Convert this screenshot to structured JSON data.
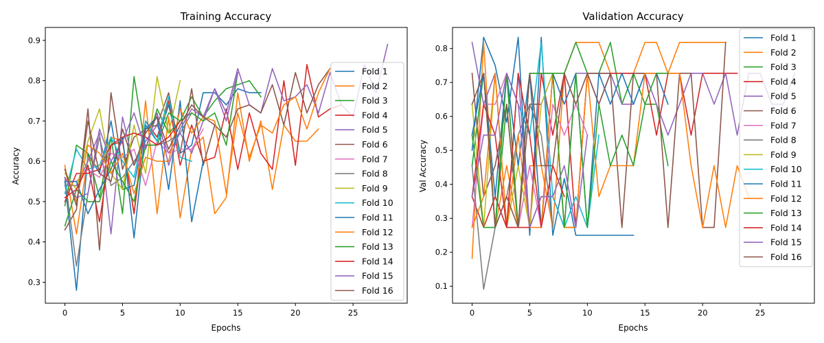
{
  "chart_data": [
    {
      "type": "line",
      "title": "Training Accuracy",
      "xlabel": "Epochs",
      "ylabel": "Accuracy",
      "xlim": [
        -1.7,
        29.7
      ],
      "ylim": [
        0.248,
        0.932
      ],
      "xticks": [
        0,
        5,
        10,
        15,
        20,
        25
      ],
      "yticks": [
        0.3,
        0.4,
        0.5,
        0.6,
        0.7,
        0.8,
        0.9
      ],
      "grid": false,
      "legend_position": "right",
      "series": [
        {
          "name": "Fold 1",
          "color": "#1f77b4",
          "values": [
            0.55,
            0.28,
            0.62,
            0.57,
            0.7,
            0.53,
            0.54,
            0.69,
            0.65,
            0.74,
            0.62,
            0.64,
            0.77,
            0.77,
            0.74,
            0.78,
            0.77,
            0.77
          ]
        },
        {
          "name": "Fold 2",
          "color": "#ff7f0e",
          "values": [
            0.59,
            0.42,
            0.61,
            0.58,
            0.66,
            0.65,
            0.47,
            0.75,
            0.47,
            0.71,
            0.46,
            0.63,
            0.66,
            0.47,
            0.51,
            0.77,
            0.6,
            0.7,
            0.53,
            0.69,
            0.65,
            0.65,
            0.68
          ]
        },
        {
          "name": "Fold 3",
          "color": "#2ca02c",
          "values": [
            0.49,
            0.64,
            0.62,
            0.51,
            0.66,
            0.47,
            0.81,
            0.63,
            0.73,
            0.67,
            0.7,
            0.76,
            0.71,
            0.75,
            0.78,
            0.79,
            0.8,
            0.76
          ]
        },
        {
          "name": "Fold 4",
          "color": "#d62728",
          "values": [
            0.5,
            0.57,
            0.57,
            0.58,
            0.64,
            0.65,
            0.47,
            0.7,
            0.66,
            0.75,
            0.59,
            0.69,
            0.6,
            0.61,
            0.73,
            0.58,
            0.72,
            0.62,
            0.58,
            0.8,
            0.59,
            0.84,
            0.71,
            0.73,
            0.74
          ]
        },
        {
          "name": "Fold 5",
          "color": "#9467bd",
          "values": [
            0.54,
            0.54,
            0.6,
            0.67,
            0.42,
            0.71,
            0.59,
            0.65,
            0.69,
            0.62,
            0.67,
            0.62,
            0.7,
            0.78,
            0.72,
            0.83,
            0.74,
            0.72,
            0.83,
            0.75,
            0.76,
            0.79,
            0.72,
            0.82,
            0.74,
            0.71,
            0.84,
            0.77,
            0.89
          ]
        },
        {
          "name": "Fold 6",
          "color": "#8c564b",
          "values": [
            0.43,
            0.48,
            0.73,
            0.38,
            0.77,
            0.58,
            0.66,
            0.68,
            0.69,
            0.77,
            0.62,
            0.78,
            0.59,
            0.69,
            0.66,
            0.73,
            0.74,
            0.72,
            0.79,
            0.69,
            0.82,
            0.72,
            0.79,
            0.83
          ]
        },
        {
          "name": "Fold 7",
          "color": "#e377c2",
          "values": [
            0.55,
            0.55,
            0.58,
            0.56,
            0.62,
            0.61,
            0.63,
            0.54,
            0.65,
            0.62,
            0.63,
            0.63,
            0.68
          ]
        },
        {
          "name": "Fold 8",
          "color": "#7f7f7f",
          "values": [
            0.56,
            0.34,
            0.52,
            0.66,
            0.54,
            0.56,
            0.6,
            0.64,
            0.64,
            0.65,
            0.67,
            0.72
          ]
        },
        {
          "name": "Fold 9",
          "color": "#bcbd22",
          "values": [
            0.57,
            0.53,
            0.65,
            0.73,
            0.57,
            0.53,
            0.69,
            0.57,
            0.81,
            0.67,
            0.8
          ]
        },
        {
          "name": "Fold 10",
          "color": "#17becf",
          "values": [
            0.52,
            0.63,
            0.58,
            0.59,
            0.66,
            0.6,
            0.56,
            0.7,
            0.65,
            0.76,
            0.61,
            0.6
          ]
        },
        {
          "name": "Fold 11",
          "color": "#1f77b4",
          "values": [
            0.55,
            0.55,
            0.47,
            0.53,
            0.58,
            0.66,
            0.41,
            0.68,
            0.71,
            0.53,
            0.75,
            0.45,
            0.6
          ]
        },
        {
          "name": "Fold 12",
          "color": "#ff7f0e",
          "values": [
            0.58,
            0.5,
            0.64,
            0.62,
            0.57,
            0.62,
            0.52,
            0.61,
            0.6,
            0.6,
            0.73,
            0.67,
            0.71,
            0.7,
            0.52,
            0.72,
            0.61,
            0.69,
            0.67,
            0.74,
            0.76,
            0.68,
            0.77,
            0.83
          ]
        },
        {
          "name": "Fold 13",
          "color": "#2ca02c",
          "values": [
            0.44,
            0.53,
            0.5,
            0.5,
            0.6,
            0.55,
            0.5,
            0.64,
            0.64,
            0.72,
            0.7,
            0.72,
            0.7,
            0.72,
            0.64,
            0.82
          ]
        },
        {
          "name": "Fold 14",
          "color": "#d62728",
          "values": [
            0.51,
            0.53,
            0.59,
            0.45,
            0.64,
            0.66,
            0.67,
            0.66,
            0.64,
            0.66,
            0.7
          ]
        },
        {
          "name": "Fold 15",
          "color": "#9467bd",
          "values": [
            0.56,
            0.51,
            0.52,
            0.68,
            0.6,
            0.65,
            0.72,
            0.63,
            0.72,
            0.59,
            0.68,
            0.73,
            0.71,
            0.78,
            0.7,
            0.82
          ]
        },
        {
          "name": "Fold 16",
          "color": "#8c564b",
          "values": [
            0.58,
            0.49,
            0.7,
            0.57,
            0.55,
            0.68,
            0.59,
            0.67,
            0.71,
            0.63,
            0.69,
            0.74,
            0.71,
            0.69
          ]
        }
      ]
    },
    {
      "type": "line",
      "title": "Validation Accuracy",
      "xlabel": "Epochs",
      "ylabel": "Val Accuracy",
      "xlim": [
        -1.7,
        29.7
      ],
      "ylim": [
        0.05,
        0.862
      ],
      "xticks": [
        0,
        5,
        10,
        15,
        20,
        25
      ],
      "yticks": [
        0.1,
        0.2,
        0.3,
        0.4,
        0.5,
        0.6,
        0.7,
        0.8
      ],
      "grid": false,
      "legend_position": "upper right",
      "series": [
        {
          "name": "Fold 1",
          "color": "#1f77b4",
          "values": [
            0.5,
            0.833,
            0.75,
            0.583,
            0.833,
            0.25,
            0.833,
            0.25,
            0.417,
            0.25,
            0.25,
            0.25,
            0.25,
            0.25,
            0.25
          ]
        },
        {
          "name": "Fold 2",
          "color": "#ff7f0e",
          "values": [
            0.182,
            0.818,
            0.273,
            0.455,
            0.273,
            0.455,
            0.455,
            0.273,
            0.727,
            0.818,
            0.818,
            0.818,
            0.727,
            0.727,
            0.727,
            0.818,
            0.818,
            0.727,
            0.818,
            0.818,
            0.818,
            0.818,
            0.818
          ]
        },
        {
          "name": "Fold 3",
          "color": "#2ca02c",
          "values": [
            0.455,
            0.727,
            0.273,
            0.636,
            0.273,
            0.727,
            0.727,
            0.727,
            0.727,
            0.818,
            0.727,
            0.727,
            0.818,
            0.636,
            0.727,
            0.636,
            0.636,
            0.455
          ]
        },
        {
          "name": "Fold 4",
          "color": "#d62728",
          "values": [
            0.364,
            0.273,
            0.364,
            0.273,
            0.273,
            0.273,
            0.727,
            0.545,
            0.727,
            0.273,
            0.727,
            0.727,
            0.727,
            0.727,
            0.727,
            0.727,
            0.545,
            0.727,
            0.727,
            0.545,
            0.727,
            0.727,
            0.727,
            0.727
          ]
        },
        {
          "name": "Fold 5",
          "color": "#9467bd",
          "values": [
            0.818,
            0.636,
            0.727,
            0.273,
            0.727,
            0.273,
            0.364,
            0.364,
            0.273,
            0.727,
            0.727,
            0.636,
            0.727,
            0.636,
            0.636,
            0.727,
            0.636,
            0.545,
            0.636,
            0.727,
            0.727,
            0.636,
            0.727,
            0.545,
            0.727,
            0.727,
            0.636,
            0.636,
            0.727
          ]
        },
        {
          "name": "Fold 6",
          "color": "#8c564b",
          "values": [
            0.727,
            0.364,
            0.455,
            0.636,
            0.273,
            0.636,
            0.636,
            0.727,
            0.273,
            0.273,
            0.727,
            0.727,
            0.727,
            0.273,
            0.727,
            0.727,
            0.727,
            0.273,
            0.727,
            0.727,
            0.273,
            0.273,
            0.818
          ]
        },
        {
          "name": "Fold 7",
          "color": "#e377c2",
          "values": [
            0.273,
            0.636,
            0.636,
            0.727,
            0.273,
            0.455,
            0.273,
            0.636,
            0.545,
            0.636,
            0.545
          ]
        },
        {
          "name": "Fold 8",
          "color": "#7f7f7f",
          "values": [
            0.455,
            0.091,
            0.273,
            0.364,
            0.545,
            0.636,
            0.545,
            0.273
          ]
        },
        {
          "name": "Fold 9",
          "color": "#bcbd22",
          "values": [
            0.636,
            0.273,
            0.727,
            0.273,
            0.455,
            0.273,
            0.636,
            0.727,
            0.273,
            0.273
          ]
        },
        {
          "name": "Fold 10",
          "color": "#17becf",
          "values": [
            0.545,
            0.727,
            0.273,
            0.727,
            0.636,
            0.545,
            0.818,
            0.364,
            0.273,
            0.364,
            0.273,
            0.545
          ]
        },
        {
          "name": "Fold 11",
          "color": "#1f77b4",
          "values": [
            0.545,
            0.727,
            0.364,
            0.727,
            0.455,
            0.727,
            0.273,
            0.727,
            0.636,
            0.727,
            0.273,
            0.727,
            0.636,
            0.727,
            0.636,
            0.727,
            0.727,
            0.636
          ]
        },
        {
          "name": "Fold 12",
          "color": "#ff7f0e",
          "values": [
            0.273,
            0.364,
            0.727,
            0.273,
            0.545,
            0.273,
            0.273,
            0.727,
            0.273,
            0.273,
            0.727,
            0.364,
            0.455,
            0.455,
            0.455,
            0.727,
            0.727,
            0.727,
            0.727,
            0.455,
            0.273,
            0.455,
            0.273,
            0.455,
            0.364
          ]
        },
        {
          "name": "Fold 13",
          "color": "#2ca02c",
          "values": [
            0.545,
            0.273,
            0.273,
            0.727,
            0.273,
            0.727,
            0.727,
            0.727,
            0.273,
            0.727,
            0.273,
            0.636,
            0.455,
            0.545,
            0.455,
            0.636,
            0.727,
            0.727
          ]
        },
        {
          "name": "Fold 14",
          "color": "#d62728",
          "values": [
            0.364,
            0.636,
            0.545,
            0.273,
            0.727,
            0.545,
            0.273,
            0.455,
            0.364
          ]
        },
        {
          "name": "Fold 15",
          "color": "#9467bd",
          "values": [
            0.364,
            0.545,
            0.545,
            0.727,
            0.636,
            0.273,
            0.364,
            0.364,
            0.455,
            0.273,
            0.545
          ]
        },
        {
          "name": "Fold 16",
          "color": "#8c564b",
          "values": [
            0.636,
            0.727,
            0.273,
            0.364,
            0.273,
            0.727,
            0.455,
            0.455,
            0.727,
            0.636,
            0.727,
            0.636,
            0.727
          ]
        }
      ]
    }
  ]
}
